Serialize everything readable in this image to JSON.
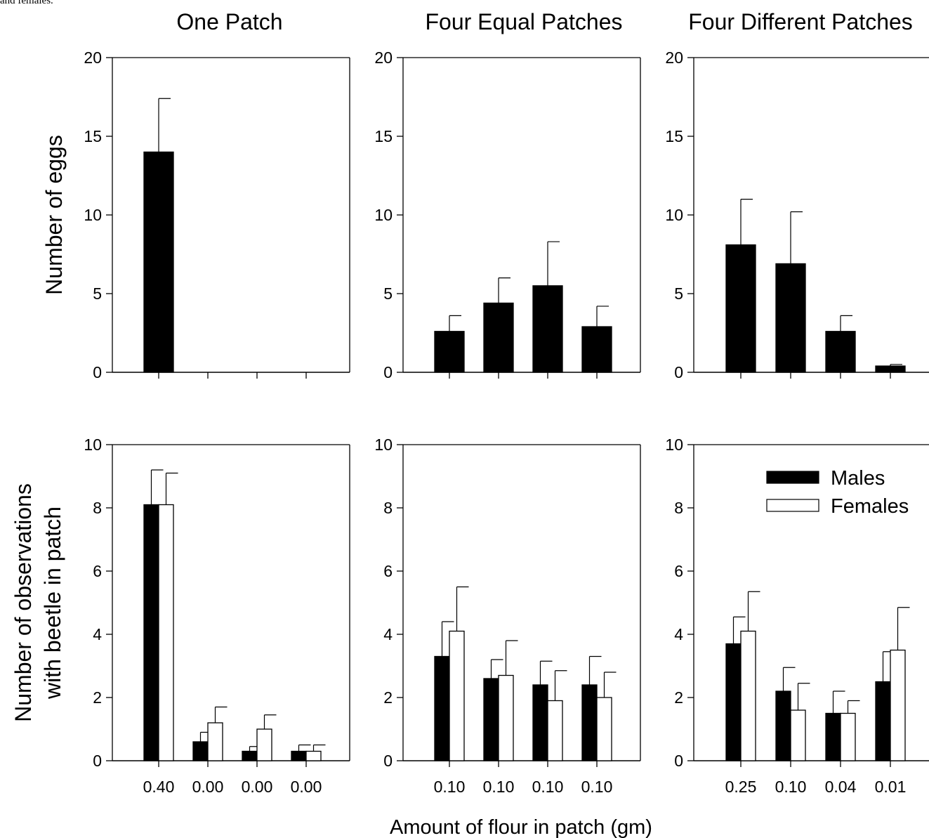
{
  "caption_fragment": "and females.",
  "figure": {
    "col_titles": [
      "One Patch",
      "Four Equal Patches",
      "Four Different Patches"
    ],
    "row_ylabels": [
      [
        "Number of eggs"
      ],
      [
        "Number of observations",
        "with beetle in patch"
      ]
    ],
    "xlabel": "Amount of flour in patch (gm)",
    "legend": {
      "position": "top-right",
      "entries": [
        "Males",
        "Females"
      ]
    },
    "colors": {
      "males": "#000000",
      "females": "#ffffff",
      "axis": "#000000"
    }
  },
  "chart_data": [
    {
      "type": "bar",
      "panel": "eggs-one-patch",
      "title": "One Patch",
      "ylabel": "Number of eggs",
      "xlabel": "",
      "categories": [
        "0.40",
        "0.00",
        "0.00",
        "0.00"
      ],
      "show_tick_labels": false,
      "ylim": [
        0,
        20
      ],
      "yticks": [
        0,
        5,
        10,
        15,
        20
      ],
      "series": [
        {
          "name": "",
          "values": [
            14.0,
            0,
            0,
            0
          ],
          "errors": [
            3.4,
            0,
            0,
            0
          ]
        }
      ]
    },
    {
      "type": "bar",
      "panel": "eggs-four-equal",
      "title": "Four Equal Patches",
      "ylabel": "",
      "xlabel": "",
      "categories": [
        "0.10",
        "0.10",
        "0.10",
        "0.10"
      ],
      "show_tick_labels": false,
      "ylim": [
        0,
        20
      ],
      "yticks": [
        0,
        5,
        10,
        15,
        20
      ],
      "series": [
        {
          "name": "",
          "values": [
            2.6,
            4.4,
            5.5,
            2.9
          ],
          "errors": [
            1.0,
            1.6,
            2.8,
            1.3
          ]
        }
      ]
    },
    {
      "type": "bar",
      "panel": "eggs-four-different",
      "title": "Four Different Patches",
      "ylabel": "",
      "xlabel": "",
      "categories": [
        "0.25",
        "0.10",
        "0.04",
        "0.01"
      ],
      "show_tick_labels": false,
      "ylim": [
        0,
        20
      ],
      "yticks": [
        0,
        5,
        10,
        15,
        20
      ],
      "series": [
        {
          "name": "",
          "values": [
            8.1,
            6.9,
            2.6,
            0.4
          ],
          "errors": [
            2.9,
            3.3,
            1.0,
            0.1
          ]
        }
      ]
    },
    {
      "type": "bar",
      "panel": "obs-one-patch",
      "title": "",
      "ylabel": "Number of observations with beetle in patch",
      "xlabel": "",
      "categories": [
        "0.40",
        "0.00",
        "0.00",
        "0.00"
      ],
      "show_tick_labels": true,
      "ylim": [
        0,
        10
      ],
      "yticks": [
        0,
        2,
        4,
        6,
        8,
        10
      ],
      "series": [
        {
          "name": "Males",
          "values": [
            8.1,
            0.6,
            0.3,
            0.3
          ],
          "errors": [
            1.1,
            0.3,
            0.15,
            0.2
          ]
        },
        {
          "name": "Females",
          "values": [
            8.1,
            1.2,
            1.0,
            0.3
          ],
          "errors": [
            1.0,
            0.5,
            0.45,
            0.2
          ]
        }
      ]
    },
    {
      "type": "bar",
      "panel": "obs-four-equal",
      "title": "",
      "ylabel": "",
      "xlabel": "",
      "categories": [
        "0.10",
        "0.10",
        "0.10",
        "0.10"
      ],
      "show_tick_labels": true,
      "ylim": [
        0,
        10
      ],
      "yticks": [
        0,
        2,
        4,
        6,
        8,
        10
      ],
      "series": [
        {
          "name": "Males",
          "values": [
            3.3,
            2.6,
            2.4,
            2.4
          ],
          "errors": [
            1.1,
            0.6,
            0.75,
            0.9
          ]
        },
        {
          "name": "Females",
          "values": [
            4.1,
            2.7,
            1.9,
            2.0
          ],
          "errors": [
            1.4,
            1.1,
            0.95,
            0.8
          ]
        }
      ]
    },
    {
      "type": "bar",
      "panel": "obs-four-different",
      "title": "",
      "ylabel": "",
      "xlabel": "",
      "categories": [
        "0.25",
        "0.10",
        "0.04",
        "0.01"
      ],
      "show_tick_labels": true,
      "ylim": [
        0,
        10
      ],
      "yticks": [
        0,
        2,
        4,
        6,
        8,
        10
      ],
      "series": [
        {
          "name": "Males",
          "values": [
            3.7,
            2.2,
            1.5,
            2.5
          ],
          "errors": [
            0.85,
            0.75,
            0.7,
            0.95
          ]
        },
        {
          "name": "Females",
          "values": [
            4.1,
            1.6,
            1.5,
            3.5
          ],
          "errors": [
            1.25,
            0.85,
            0.4,
            1.35
          ]
        }
      ]
    }
  ]
}
